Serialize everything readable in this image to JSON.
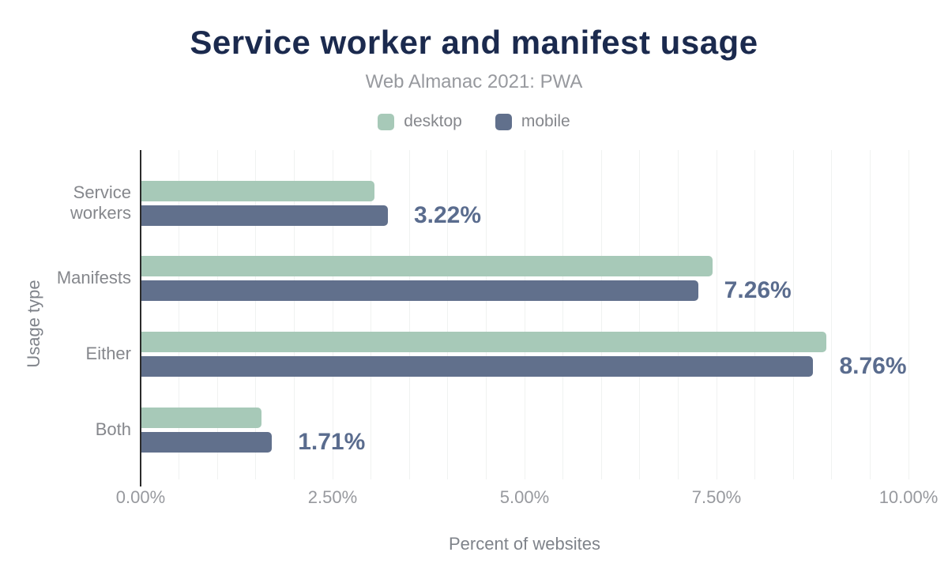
{
  "colors": {
    "background": "#ffffff",
    "desktop": "#a7c9b8",
    "mobile": "#61708c",
    "title_text": "#1b2a4e",
    "subtitle_text": "#97999e",
    "legend_text": "#85878c",
    "category_text": "#85878c",
    "tick_text": "#97999e",
    "axis_title_text": "#7f838a",
    "value_label_text": "#5a6c8e",
    "gridline": "#f0f2f1",
    "axis_line": "#2b2b2b"
  },
  "chart_data": {
    "type": "bar",
    "orientation": "horizontal",
    "title": "Service worker and manifest usage",
    "subtitle": "Web Almanac 2021: PWA",
    "xlabel": "Percent of websites",
    "ylabel": "Usage type",
    "categories": [
      "Service workers",
      "Manifests",
      "Either",
      "Both"
    ],
    "series": [
      {
        "name": "desktop",
        "color": "#a7c9b8",
        "values": [
          3.05,
          7.45,
          8.93,
          1.57
        ]
      },
      {
        "name": "mobile",
        "color": "#61708c",
        "values": [
          3.22,
          7.26,
          8.76,
          1.71
        ]
      }
    ],
    "data_labels": [
      "3.22%",
      "7.26%",
      "8.76%",
      "1.71%"
    ],
    "data_labels_on_series": "mobile",
    "xlim": [
      0,
      10
    ],
    "xticks": [
      0,
      2.5,
      5,
      7.5,
      10
    ],
    "xtick_labels": [
      "0.00%",
      "2.50%",
      "5.00%",
      "7.50%",
      "10.00%"
    ],
    "grid_minor_step": 0.5,
    "grid": "vertical-minor-on",
    "legend_position": "top-center"
  }
}
